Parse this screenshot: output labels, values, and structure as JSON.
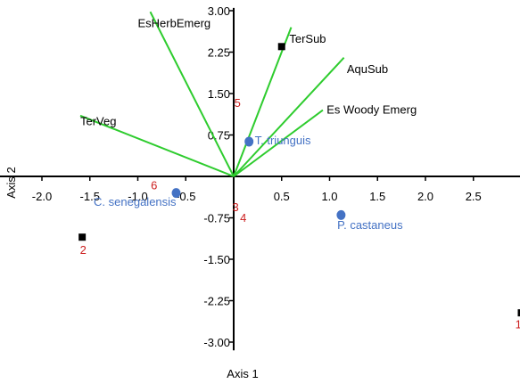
{
  "colors": {
    "axis": "#000000",
    "vector": "#2ecc2e",
    "species": "#4472c4",
    "site": "#000000",
    "site_label": "#cc1f1f",
    "vector_label": "#000000"
  },
  "chart_data": {
    "type": "scatter",
    "title": "",
    "xlabel": "Axis 1",
    "ylabel": "Axis 2",
    "xlim": [
      -2.1,
      2.95
    ],
    "ylim": [
      -3.15,
      3.05
    ],
    "x_ticks": [
      {
        "value": -2.0,
        "label": "-2.0"
      },
      {
        "value": -1.5,
        "label": "-1.5"
      },
      {
        "value": -1.0,
        "label": "-1.0"
      },
      {
        "value": -0.5,
        "label": "-0.5"
      },
      {
        "value": 0.5,
        "label": "0.5"
      },
      {
        "value": 1.0,
        "label": "1.0"
      },
      {
        "value": 1.5,
        "label": "1.5"
      },
      {
        "value": 2.0,
        "label": "2.0"
      },
      {
        "value": 2.5,
        "label": "2.5"
      }
    ],
    "y_ticks": [
      {
        "value": 3.0,
        "label": "3.00"
      },
      {
        "value": 2.25,
        "label": "2.25"
      },
      {
        "value": 1.5,
        "label": "1.50"
      },
      {
        "value": 0.75,
        "label": "0.75"
      },
      {
        "value": -0.75,
        "label": "-0.75"
      },
      {
        "value": -1.5,
        "label": "-1.50"
      },
      {
        "value": -2.25,
        "label": "-2.25"
      },
      {
        "value": -3.0,
        "label": "-3.00"
      }
    ],
    "vectors": [
      {
        "label": "EsHerbEmerg",
        "x": -0.87,
        "y": 2.98,
        "lx": -1.0,
        "ly": 2.7
      },
      {
        "label": "TerSub",
        "x": 0.6,
        "y": 2.7,
        "lx": 0.58,
        "ly": 2.42
      },
      {
        "label": "AquSub",
        "x": 1.15,
        "y": 2.15,
        "lx": 1.18,
        "ly": 1.87
      },
      {
        "label": "Es Woody Emerg",
        "x": 0.93,
        "y": 1.2,
        "lx": 0.97,
        "ly": 1.14
      },
      {
        "label": "TerVeg",
        "x": -1.6,
        "y": 1.1,
        "lx": -1.6,
        "ly": 0.93
      }
    ],
    "species": [
      {
        "label": "T. triunguis",
        "x": 0.16,
        "y": 0.63,
        "lx": 0.22,
        "ly": 0.58
      },
      {
        "label": "C. senegalensis",
        "x": -0.6,
        "y": -0.3,
        "lx": -1.46,
        "ly": -0.53
      },
      {
        "label": "P. castaneus",
        "x": 1.12,
        "y": -0.7,
        "lx": 1.08,
        "ly": -0.95
      }
    ],
    "sites": [
      {
        "label": "1",
        "x": 3.0,
        "y": -2.47,
        "lx": 2.97,
        "ly": -2.75,
        "marker": true
      },
      {
        "label": "2",
        "x": -1.58,
        "y": -1.1,
        "lx": -1.57,
        "ly": -1.4,
        "marker": true
      },
      {
        "label": "3",
        "x": 0.0,
        "y": -0.6,
        "lx": 0.02,
        "ly": -0.63,
        "marker": false
      },
      {
        "label": "4",
        "x": 0.0,
        "y": -0.78,
        "lx": 0.1,
        "ly": -0.82,
        "marker": false
      },
      {
        "label": "5",
        "x": 0.0,
        "y": 1.3,
        "lx": 0.04,
        "ly": 1.26,
        "marker": false
      },
      {
        "label": "6",
        "x": -0.83,
        "y": -0.2,
        "lx": -0.83,
        "ly": -0.23,
        "marker": false
      },
      {
        "label": "",
        "x": 0.5,
        "y": 2.35,
        "lx": 0.5,
        "ly": 2.35,
        "marker": true
      }
    ]
  }
}
